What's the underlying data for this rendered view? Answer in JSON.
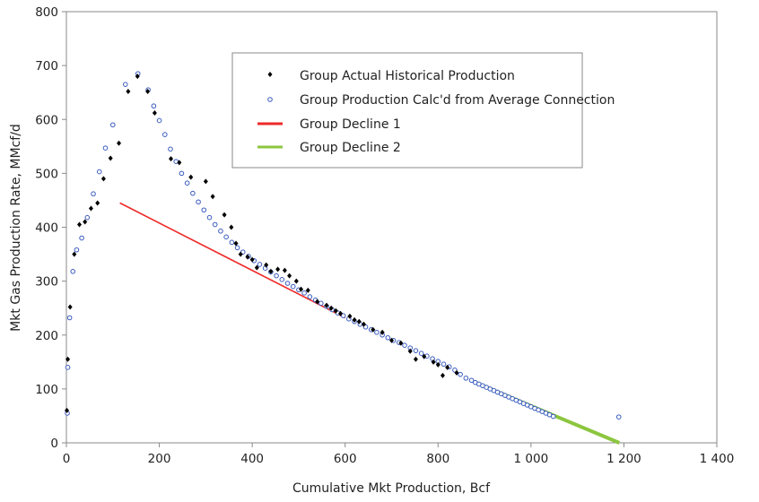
{
  "chart_data": {
    "type": "scatter",
    "title": "",
    "xlabel": "Cumulative Mkt Production, Bcf",
    "ylabel": "Mkt Gas Production Rate, MMcf/d",
    "xlim": [
      0,
      1400
    ],
    "ylim": [
      0,
      800
    ],
    "xticks": [
      0,
      200,
      400,
      600,
      800,
      1000,
      1200,
      1400
    ],
    "xtick_labels": [
      "0",
      "200",
      "400",
      "600",
      "800",
      "1 000",
      "1 200",
      "1 400"
    ],
    "yticks": [
      0,
      100,
      200,
      300,
      400,
      500,
      600,
      700,
      800
    ],
    "ytick_labels": [
      "0",
      "100",
      "200",
      "300",
      "400",
      "500",
      "600",
      "700",
      "800"
    ],
    "grid": false,
    "legend_position": "top-right",
    "series": [
      {
        "name": "Group Actual Historical Production",
        "kind": "scatter",
        "marker": "filled-diamond",
        "color": "#000000",
        "points": [
          [
            1,
            60
          ],
          [
            3,
            155
          ],
          [
            8,
            252
          ],
          [
            17,
            350
          ],
          [
            28,
            405
          ],
          [
            40,
            410
          ],
          [
            53,
            435
          ],
          [
            67,
            445
          ],
          [
            80,
            490
          ],
          [
            95,
            528
          ],
          [
            113,
            556
          ],
          [
            133,
            652
          ],
          [
            153,
            680
          ],
          [
            175,
            652
          ],
          [
            190,
            612
          ],
          [
            225,
            527
          ],
          [
            243,
            520
          ],
          [
            268,
            493
          ],
          [
            300,
            485
          ],
          [
            315,
            457
          ],
          [
            340,
            423
          ],
          [
            355,
            400
          ],
          [
            365,
            370
          ],
          [
            375,
            350
          ],
          [
            390,
            345
          ],
          [
            400,
            340
          ],
          [
            410,
            325
          ],
          [
            430,
            330
          ],
          [
            440,
            318
          ],
          [
            455,
            322
          ],
          [
            470,
            320
          ],
          [
            480,
            310
          ],
          [
            495,
            300
          ],
          [
            505,
            285
          ],
          [
            520,
            283
          ],
          [
            540,
            262
          ],
          [
            560,
            255
          ],
          [
            570,
            250
          ],
          [
            580,
            245
          ],
          [
            590,
            240
          ],
          [
            610,
            235
          ],
          [
            620,
            228
          ],
          [
            630,
            225
          ],
          [
            640,
            220
          ],
          [
            660,
            210
          ],
          [
            680,
            205
          ],
          [
            700,
            190
          ],
          [
            720,
            185
          ],
          [
            740,
            170
          ],
          [
            752,
            155
          ],
          [
            770,
            160
          ],
          [
            790,
            150
          ],
          [
            800,
            145
          ],
          [
            810,
            125
          ],
          [
            820,
            140
          ],
          [
            840,
            130
          ]
        ]
      },
      {
        "name": "Group Production Calc'd from Average Connection",
        "kind": "scatter",
        "marker": "open-circle",
        "color": "#3a5bbf",
        "points": [
          [
            2,
            55
          ],
          [
            3,
            140
          ],
          [
            7,
            232
          ],
          [
            14,
            318
          ],
          [
            22,
            358
          ],
          [
            33,
            380
          ],
          [
            45,
            418
          ],
          [
            58,
            462
          ],
          [
            71,
            503
          ],
          [
            84,
            547
          ],
          [
            100,
            590
          ],
          [
            127,
            665
          ],
          [
            154,
            685
          ],
          [
            176,
            655
          ],
          [
            188,
            625
          ],
          [
            200,
            598
          ],
          [
            212,
            572
          ],
          [
            224,
            545
          ],
          [
            236,
            522
          ],
          [
            248,
            500
          ],
          [
            260,
            482
          ],
          [
            272,
            463
          ],
          [
            284,
            447
          ],
          [
            296,
            432
          ],
          [
            308,
            418
          ],
          [
            320,
            405
          ],
          [
            332,
            393
          ],
          [
            344,
            382
          ],
          [
            356,
            372
          ],
          [
            368,
            362
          ],
          [
            380,
            354
          ],
          [
            392,
            346
          ],
          [
            404,
            338
          ],
          [
            416,
            331
          ],
          [
            428,
            324
          ],
          [
            440,
            317
          ],
          [
            452,
            310
          ],
          [
            464,
            303
          ],
          [
            476,
            296
          ],
          [
            488,
            290
          ],
          [
            500,
            284
          ],
          [
            512,
            278
          ],
          [
            524,
            271
          ],
          [
            536,
            265
          ],
          [
            548,
            259
          ],
          [
            560,
            253
          ],
          [
            572,
            247
          ],
          [
            584,
            241
          ],
          [
            596,
            236
          ],
          [
            608,
            230
          ],
          [
            620,
            225
          ],
          [
            632,
            220
          ],
          [
            644,
            215
          ],
          [
            656,
            210
          ],
          [
            668,
            205
          ],
          [
            680,
            200
          ],
          [
            692,
            195
          ],
          [
            704,
            190
          ],
          [
            716,
            186
          ],
          [
            728,
            181
          ],
          [
            740,
            176
          ],
          [
            752,
            171
          ],
          [
            764,
            166
          ],
          [
            776,
            161
          ],
          [
            788,
            156
          ],
          [
            800,
            151
          ],
          [
            812,
            146
          ],
          [
            824,
            141
          ],
          [
            836,
            135
          ],
          [
            848,
            127
          ],
          [
            860,
            120
          ],
          [
            872,
            116
          ],
          [
            880,
            112
          ],
          [
            888,
            109
          ],
          [
            896,
            106
          ],
          [
            904,
            103
          ],
          [
            912,
            100
          ],
          [
            920,
            97
          ],
          [
            928,
            94
          ],
          [
            936,
            91
          ],
          [
            944,
            88
          ],
          [
            952,
            85
          ],
          [
            960,
            82
          ],
          [
            968,
            79
          ],
          [
            976,
            76
          ],
          [
            984,
            73
          ],
          [
            992,
            70
          ],
          [
            1000,
            67
          ],
          [
            1008,
            64
          ],
          [
            1016,
            61
          ],
          [
            1024,
            58
          ],
          [
            1032,
            55
          ],
          [
            1040,
            52
          ],
          [
            1048,
            49
          ],
          [
            1189,
            48
          ]
        ]
      },
      {
        "name": "Group Decline 1",
        "kind": "line",
        "color": "#ee2a2a",
        "points": [
          [
            115,
            445
          ],
          [
            600,
            232
          ]
        ]
      },
      {
        "name": "Group Decline 2",
        "kind": "line",
        "color": "#8cc63f",
        "points": [
          [
            880,
            112
          ],
          [
            1190,
            0
          ]
        ]
      }
    ]
  }
}
